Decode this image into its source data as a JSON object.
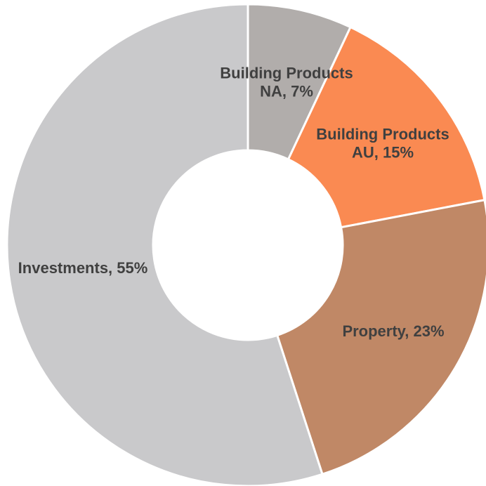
{
  "chart_data": {
    "type": "donut",
    "labels": [
      "Building Products NA, 7%",
      "Building Products AU, 15%",
      "Property, 23%",
      "Investments, 55%"
    ],
    "values": [
      7,
      15,
      23,
      55
    ],
    "colors": [
      "#b1adab",
      "#fa8a52",
      "#c08866",
      "#c9c9cb"
    ]
  }
}
